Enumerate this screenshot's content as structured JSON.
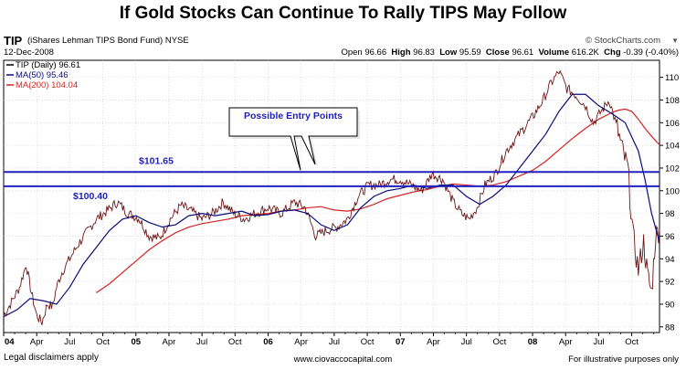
{
  "title": "If Gold Stocks Can Continue To Rally TIPS May Follow",
  "header": {
    "symbol": "TIP",
    "fund_name": "(iShares Lehman TIPS Bond Fund)",
    "exchange": "NYSE",
    "date": "12-Dec-2008",
    "watermark": "© StockCharts.com",
    "open_label": "Open",
    "open": "96.66",
    "high_label": "High",
    "high": "96.83",
    "low_label": "Low",
    "low": "95.59",
    "close_label": "Close",
    "close": "96.61",
    "volume_label": "Volume",
    "volume": "616.2K",
    "chg_label": "Chg",
    "chg": "-0.39 (-0.40%)"
  },
  "footer": {
    "left": "Legal disclaimers apply",
    "center": "www.ciovaccocapital.com",
    "right": "For illustrative purposes only"
  },
  "colors": {
    "price": "#6b1515",
    "ma50": "#0b0b7a",
    "ma200": "#d62222",
    "hline": "#2020c0",
    "grid": "#c8c8c8"
  },
  "chart_data": {
    "type": "line",
    "title": "If Gold Stocks Can Continue To Rally TIPS May Follow",
    "ylim": [
      87.5,
      111.5
    ],
    "yticks": [
      88,
      90,
      92,
      94,
      96,
      98,
      100,
      102,
      104,
      106,
      108,
      110
    ],
    "ytick_labels": [
      "88",
      "90",
      "92",
      "94",
      "96",
      "98",
      "100",
      "102",
      "104",
      "106",
      "108",
      "110"
    ],
    "x_labels": [
      "04",
      "Apr",
      "Jul",
      "Oct",
      "05",
      "Apr",
      "Jul",
      "Oct",
      "06",
      "Apr",
      "Jul",
      "Oct",
      "07",
      "Apr",
      "Jul",
      "Oct",
      "08",
      "Apr",
      "Jul",
      "Oct"
    ],
    "x_start_year": 2004,
    "x_end_year": 2008.96,
    "legend": [
      {
        "label": "TIP (Daily) 96.61",
        "color": "#000000"
      },
      {
        "label": "MA(50) 95.46",
        "color": "#0b0b7a"
      },
      {
        "label": "MA(200) 104.04",
        "color": "#d62222"
      }
    ],
    "series": [
      {
        "name": "TIP (Daily)",
        "x": [
          2004.0,
          2004.06,
          2004.12,
          2004.17,
          2004.21,
          2004.25,
          2004.29,
          2004.33,
          2004.37,
          2004.4,
          2004.44,
          2004.5,
          2004.56,
          2004.62,
          2004.7,
          2004.78,
          2004.86,
          2004.94,
          2005.02,
          2005.1,
          2005.18,
          2005.26,
          2005.34,
          2005.42,
          2005.5,
          2005.58,
          2005.66,
          2005.74,
          2005.82,
          2005.9,
          2006.0,
          2006.1,
          2006.2,
          2006.28,
          2006.36,
          2006.44,
          2006.52,
          2006.6,
          2006.68,
          2006.76,
          2006.84,
          2006.92,
          2007.0,
          2007.08,
          2007.16,
          2007.24,
          2007.32,
          2007.4,
          2007.46,
          2007.52,
          2007.58,
          2007.64,
          2007.72,
          2007.8,
          2007.9,
          2008.0,
          2008.08,
          2008.14,
          2008.2,
          2008.26,
          2008.32,
          2008.4,
          2008.46,
          2008.52,
          2008.58,
          2008.64,
          2008.68,
          2008.72,
          2008.76,
          2008.8,
          2008.84,
          2008.87,
          2008.9,
          2008.93,
          2008.96
        ],
        "values": [
          89.0,
          90.2,
          91.5,
          93.5,
          91.0,
          89.0,
          88.4,
          90.0,
          89.8,
          91.5,
          92.8,
          94.0,
          95.2,
          96.2,
          97.5,
          98.2,
          99.0,
          98.0,
          97.6,
          96.0,
          95.8,
          97.5,
          98.7,
          98.2,
          97.5,
          98.0,
          99.0,
          98.0,
          97.5,
          98.0,
          98.5,
          98.0,
          99.0,
          98.5,
          96.0,
          96.5,
          96.8,
          97.5,
          99.5,
          100.5,
          100.5,
          101.0,
          101.0,
          100.5,
          100.0,
          101.5,
          101.0,
          99.0,
          98.0,
          97.5,
          98.5,
          100.5,
          101.5,
          103.5,
          105.0,
          106.5,
          108.0,
          109.5,
          110.5,
          109.0,
          108.5,
          107.5,
          106.0,
          107.0,
          108.0,
          105.5,
          103.5,
          102.0,
          96.0,
          93.0,
          95.5,
          92.5,
          91.0,
          96.0,
          96.61
        ]
      },
      {
        "name": "MA(50)",
        "x": [
          2004.0,
          2004.1,
          2004.2,
          2004.3,
          2004.4,
          2004.5,
          2004.6,
          2004.7,
          2004.8,
          2004.9,
          2005.0,
          2005.1,
          2005.2,
          2005.3,
          2005.4,
          2005.5,
          2005.6,
          2005.7,
          2005.8,
          2005.9,
          2006.0,
          2006.1,
          2006.2,
          2006.3,
          2006.4,
          2006.5,
          2006.6,
          2006.7,
          2006.8,
          2006.9,
          2007.0,
          2007.1,
          2007.2,
          2007.3,
          2007.4,
          2007.5,
          2007.6,
          2007.7,
          2007.8,
          2007.9,
          2008.0,
          2008.1,
          2008.2,
          2008.3,
          2008.4,
          2008.5,
          2008.6,
          2008.7,
          2008.8,
          2008.85,
          2008.9,
          2008.96
        ],
        "values": [
          88.9,
          89.5,
          90.5,
          90.3,
          90.0,
          91.5,
          93.5,
          95.0,
          96.5,
          97.5,
          97.8,
          97.2,
          96.8,
          97.0,
          97.8,
          98.0,
          97.8,
          98.0,
          98.2,
          97.8,
          97.9,
          98.2,
          98.3,
          98.0,
          97.0,
          96.5,
          97.0,
          98.5,
          99.5,
          100.0,
          100.2,
          100.5,
          100.2,
          100.5,
          100.5,
          99.5,
          98.8,
          99.5,
          100.5,
          102.0,
          103.5,
          105.0,
          107.0,
          108.5,
          108.5,
          107.5,
          106.8,
          106.0,
          103.5,
          101.0,
          98.0,
          95.46
        ]
      },
      {
        "name": "MA(200)",
        "x": [
          2004.7,
          2004.8,
          2004.9,
          2005.0,
          2005.1,
          2005.2,
          2005.3,
          2005.4,
          2005.5,
          2005.6,
          2005.7,
          2005.8,
          2005.9,
          2006.0,
          2006.1,
          2006.2,
          2006.3,
          2006.4,
          2006.5,
          2006.6,
          2006.7,
          2006.8,
          2006.9,
          2007.0,
          2007.1,
          2007.2,
          2007.3,
          2007.4,
          2007.5,
          2007.6,
          2007.7,
          2007.8,
          2007.9,
          2008.0,
          2008.1,
          2008.2,
          2008.3,
          2008.4,
          2008.5,
          2008.6,
          2008.65,
          2008.7,
          2008.75,
          2008.8,
          2008.85,
          2008.9,
          2008.96
        ],
        "values": [
          91.0,
          91.8,
          92.8,
          93.8,
          94.8,
          95.6,
          96.3,
          96.8,
          97.1,
          97.3,
          97.5,
          97.8,
          97.9,
          98.0,
          98.2,
          98.3,
          98.5,
          98.6,
          98.3,
          98.2,
          98.4,
          98.8,
          99.3,
          99.6,
          99.9,
          100.1,
          100.4,
          100.6,
          100.5,
          100.4,
          100.5,
          100.8,
          101.3,
          101.8,
          102.6,
          103.6,
          104.6,
          105.5,
          106.3,
          106.9,
          107.1,
          107.2,
          107.0,
          106.3,
          105.5,
          104.8,
          104.04
        ]
      }
    ],
    "hlines": [
      {
        "value": 101.65,
        "label": "$101.65"
      },
      {
        "value": 100.4,
        "label": "$100.40"
      }
    ],
    "annotations": [
      {
        "text": "Possible Entry Points"
      }
    ]
  }
}
